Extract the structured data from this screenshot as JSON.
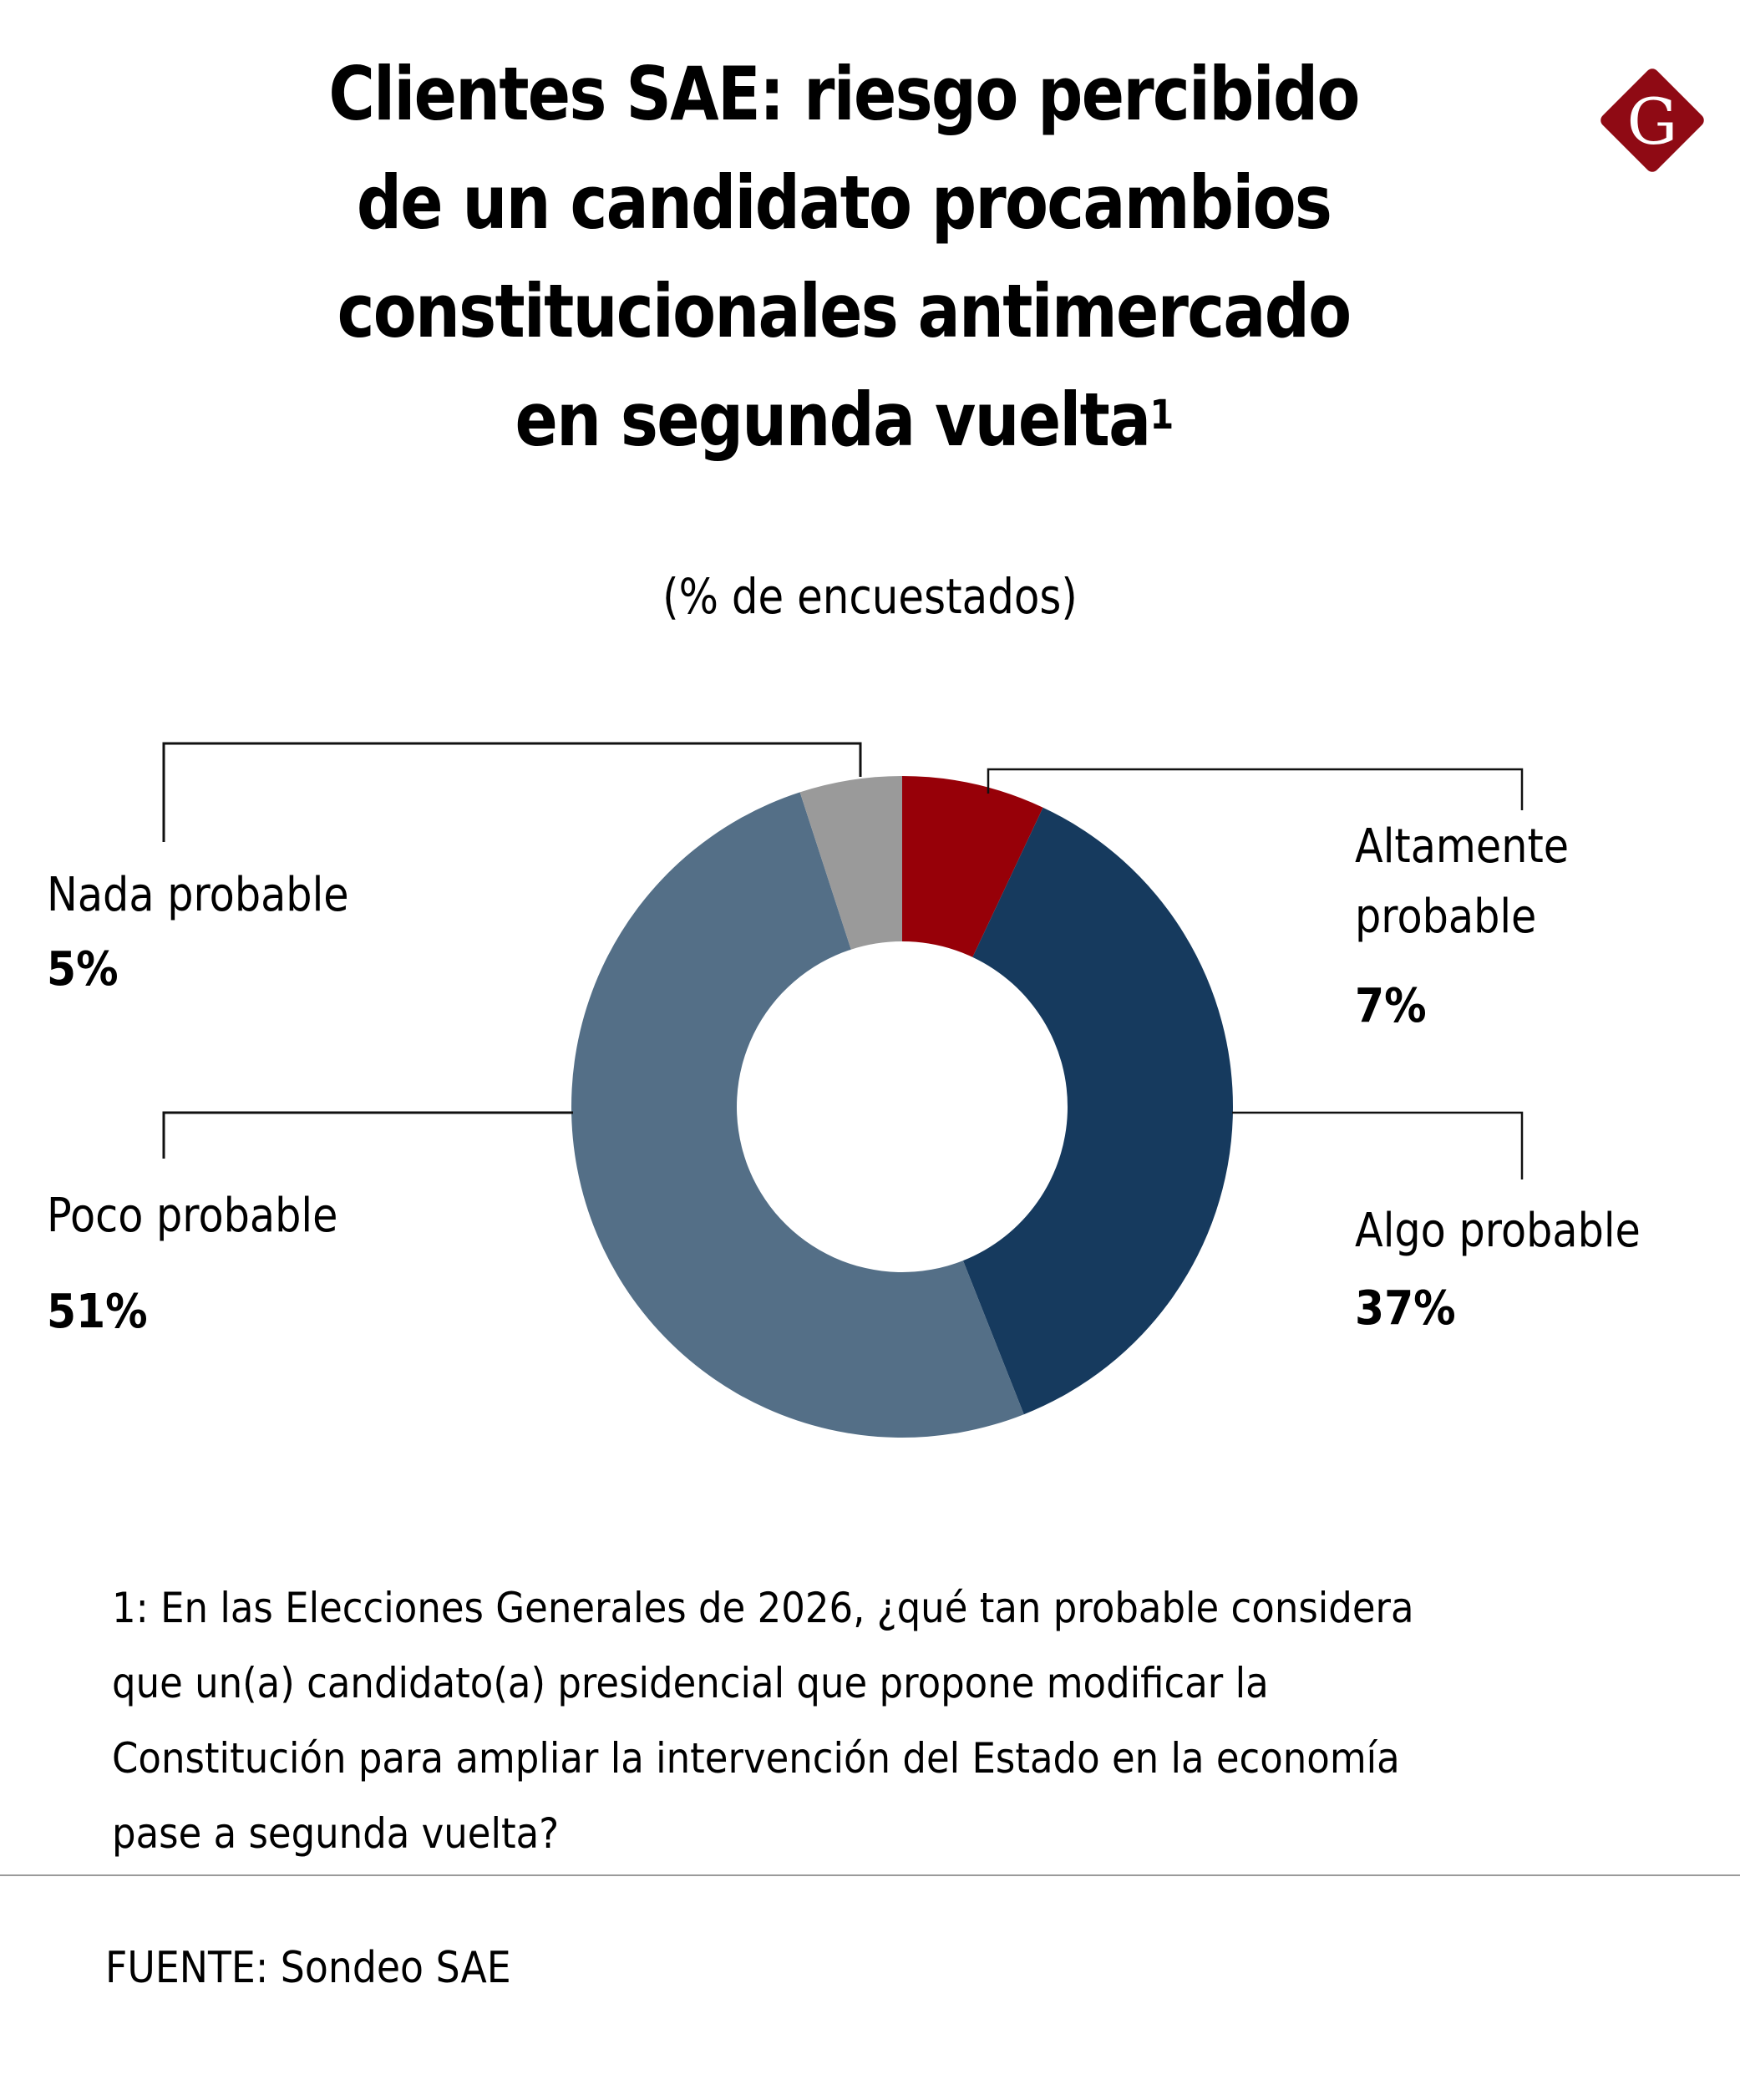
{
  "header": {
    "title_lines": [
      "Clientes SAE: riesgo percibido",
      "de un candidato procambios",
      "constitucionales antimercado",
      "en segunda vuelta"
    ],
    "title_footnote_marker": "1",
    "subtitle": "(% de encuestados)",
    "logo_letter": "G"
  },
  "colors": {
    "altamente": "#970008",
    "algo": "#163a5e",
    "poco": "#546f87",
    "nada": "#9a9a9a",
    "logo": "#8f0a14"
  },
  "chart_data": {
    "type": "pie",
    "variant": "donut",
    "title": "Clientes SAE: riesgo percibido de un candidato procambios constitucionales antimercado en segunda vuelta",
    "subtitle": "(% de encuestados)",
    "unit": "%",
    "start": "top, clockwise",
    "slices": [
      {
        "label": "Altamente probable",
        "value": 7,
        "display": "7%"
      },
      {
        "label": "Algo probable",
        "value": 37,
        "display": "37%"
      },
      {
        "label": "Poco probable",
        "value": 51,
        "display": "51%"
      },
      {
        "label": "Nada probable",
        "value": 5,
        "display": "5%"
      }
    ]
  },
  "labels": {
    "altamente_line1": "Altamente",
    "altamente_line2": "probable",
    "altamente_pct": "7%",
    "algo": "Algo probable",
    "algo_pct": "37%",
    "poco": "Poco probable",
    "poco_pct": "51%",
    "nada": "Nada probable",
    "nada_pct": "5%"
  },
  "footnote": {
    "lines": [
      "1: En las Elecciones Generales de 2026, ¿qué tan probable considera",
      "que un(a) candidato(a) presidencial que propone modificar la",
      "Constitución para ampliar la intervención del Estado en la economía",
      "pase a segunda vuelta?"
    ]
  },
  "source": "FUENTE: Sondeo SAE"
}
